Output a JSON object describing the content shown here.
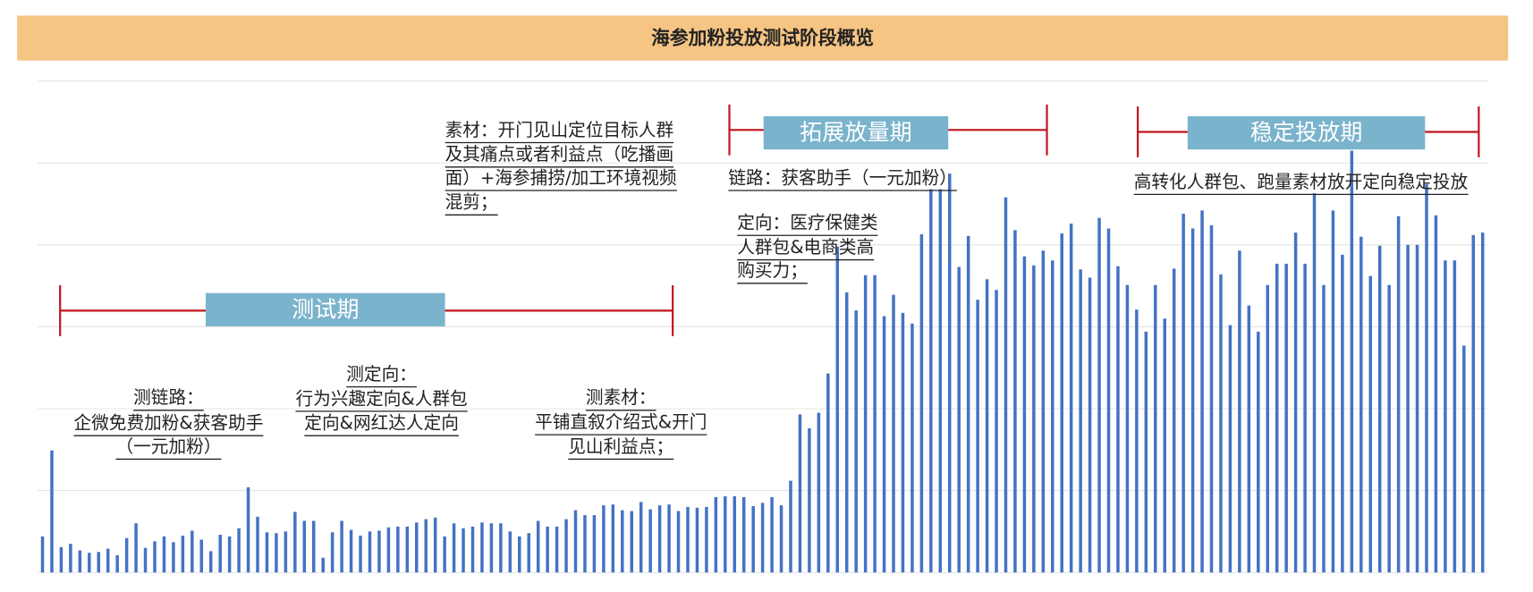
{
  "chart_data": {
    "type": "bar",
    "title": "海参加粉投放测试阶段概览",
    "color": "#4472c4",
    "ylim": [
      0,
      600
    ],
    "yticks": [
      0,
      100,
      200,
      300,
      400,
      500,
      600
    ],
    "grid": true,
    "values": [
      44,
      149,
      31,
      35,
      27,
      24,
      25,
      29,
      21,
      42,
      60,
      30,
      38,
      44,
      37,
      45,
      51,
      40,
      26,
      46,
      44,
      54,
      104,
      68,
      49,
      48,
      50,
      74,
      63,
      63,
      18,
      49,
      63,
      52,
      45,
      50,
      51,
      55,
      56,
      56,
      61,
      65,
      67,
      44,
      60,
      54,
      56,
      61,
      60,
      60,
      50,
      44,
      48,
      63,
      56,
      56,
      65,
      76,
      70,
      70,
      82,
      83,
      76,
      75,
      86,
      77,
      82,
      83,
      75,
      80,
      79,
      80,
      92,
      93,
      93,
      92,
      81,
      85,
      92,
      82,
      112,
      193,
      176,
      195,
      243,
      398,
      342,
      320,
      363,
      363,
      313,
      339,
      317,
      304,
      413,
      468,
      468,
      487,
      373,
      411,
      333,
      358,
      345,
      458,
      418,
      386,
      375,
      393,
      381,
      414,
      426,
      370,
      360,
      433,
      420,
      374,
      351,
      321,
      294,
      351,
      310,
      371,
      438,
      420,
      442,
      424,
      364,
      302,
      393,
      326,
      294,
      351,
      377,
      377,
      415,
      377,
      463,
      351,
      442,
      388,
      515,
      410,
      362,
      399,
      351,
      435,
      400,
      400,
      474,
      436,
      381,
      381,
      277,
      412,
      415
    ],
    "phases": [
      "测试期",
      "拓展放量期",
      "稳定投放期"
    ],
    "annotations": [
      {
        "lines": [
          "测链路：",
          "企微免费加粉&获客助手",
          "（一元加粉）"
        ]
      },
      {
        "lines": [
          "测定向：",
          "行为兴趣定向&人群包",
          "定向&网红达人定向"
        ]
      },
      {
        "lines": [
          "测素材：",
          "平铺直叙介绍式&开门",
          "见山利益点；"
        ]
      },
      {
        "lines": [
          "素材：开门见山定位目标人群",
          "及其痛点或者利益点（吃播画",
          "面）+海参捕捞/加工环境视频",
          "混剪；"
        ]
      },
      {
        "lines": [
          "链路：获客助手（一元加粉）"
        ]
      },
      {
        "lines": [
          "定向：医疗保健类",
          "人群包&电商类高",
          "购买力；"
        ]
      },
      {
        "lines": [
          "高转化人群包、跑量素材放开定向稳定投放"
        ]
      }
    ]
  }
}
